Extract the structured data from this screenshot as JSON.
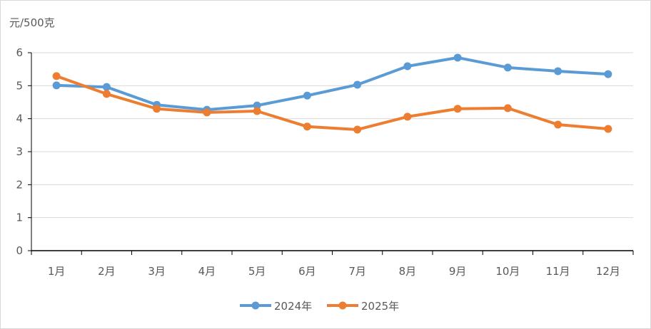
{
  "chart_data": {
    "type": "line",
    "title": "",
    "ylabel": "元/500克",
    "xlabel": "",
    "ylim": [
      0,
      6
    ],
    "yticks": [
      0,
      1,
      2,
      3,
      4,
      5,
      6
    ],
    "grid": true,
    "legend_position": "bottom",
    "categories": [
      "1月",
      "2月",
      "3月",
      "4月",
      "5月",
      "6月",
      "7月",
      "8月",
      "9月",
      "10月",
      "11月",
      "12月"
    ],
    "series": [
      {
        "name": "2024年",
        "color": "#5b9bd5",
        "values": [
          5.01,
          4.96,
          4.42,
          4.27,
          4.4,
          4.7,
          5.03,
          5.59,
          5.85,
          5.55,
          5.44,
          5.35
        ]
      },
      {
        "name": "2025年",
        "color": "#ed7d31",
        "values": [
          5.29,
          4.75,
          4.3,
          4.19,
          4.23,
          3.76,
          3.67,
          4.06,
          4.3,
          4.32,
          3.82,
          3.69
        ]
      }
    ]
  }
}
